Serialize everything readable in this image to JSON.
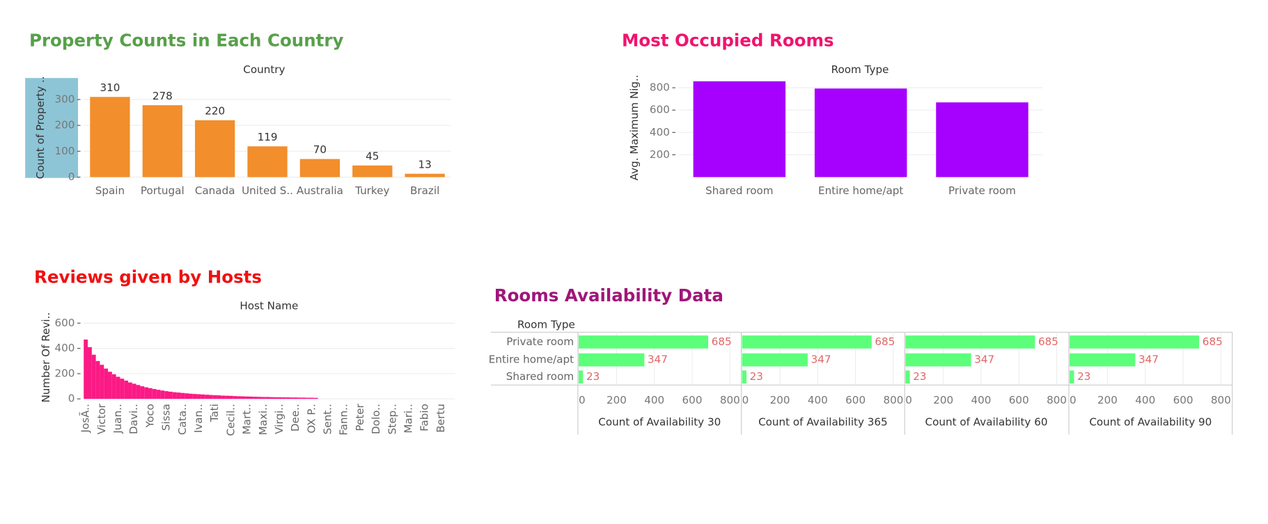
{
  "chart_data": [
    {
      "type": "bar",
      "title": "Property Counts in Each Country",
      "header": "Country",
      "ylabel": "Count of Property ..",
      "categories": [
        "Spain",
        "Portugal",
        "Canada",
        "United S..",
        "Australia",
        "Turkey",
        "Brazil"
      ],
      "values": [
        310,
        278,
        220,
        119,
        70,
        45,
        13
      ],
      "color": "#f28e2b",
      "data_labels": true,
      "ylim": [
        0,
        380
      ],
      "yticks": [
        0,
        100,
        200,
        300
      ],
      "grid": true
    },
    {
      "type": "bar",
      "title": "Most Occupied Rooms",
      "header": "Room Type",
      "ylabel": "Avg. Maximum Nig..",
      "categories": [
        "Shared room",
        "Entire home/apt",
        "Private room"
      ],
      "values": [
        858,
        793,
        669
      ],
      "color": "#a600ff",
      "data_labels": false,
      "ylim": [
        0,
        880
      ],
      "yticks": [
        200,
        400,
        600,
        800
      ],
      "grid": true
    },
    {
      "type": "bar",
      "title": "Reviews given by Hosts",
      "header": "Host Name",
      "ylabel": "Number Of Revi..",
      "categories": [
        "JosÃ..",
        null,
        null,
        null,
        "Victor",
        null,
        null,
        null,
        "Juan..",
        null,
        null,
        null,
        "Davi..",
        null,
        null,
        null,
        "Yoco",
        null,
        null,
        null,
        "Sissa",
        null,
        null,
        null,
        "Cata..",
        null,
        null,
        null,
        "Ivan..",
        null,
        null,
        null,
        "Tati",
        null,
        null,
        null,
        "Cecil..",
        null,
        null,
        null,
        "Mart..",
        null,
        null,
        null,
        "Maxi..",
        null,
        null,
        null,
        "Virgi..",
        null,
        null,
        null,
        "Dee..",
        null,
        null,
        null,
        "OX P..",
        null,
        null,
        null,
        "Sent..",
        null,
        null,
        null,
        "Fann..",
        null,
        null,
        null,
        "Peter",
        null,
        null,
        null,
        "Dolo..",
        null,
        null,
        null,
        "Step..",
        null,
        null,
        null,
        "Mari..",
        null,
        null,
        null,
        "Fabio",
        null,
        null,
        null,
        "Bertu",
        null,
        null,
        null
      ],
      "values": [
        470,
        410,
        350,
        300,
        270,
        240,
        215,
        195,
        175,
        160,
        145,
        130,
        120,
        110,
        100,
        92,
        85,
        78,
        72,
        66,
        61,
        57,
        53,
        50,
        47,
        44,
        41,
        39,
        37,
        35,
        33,
        31,
        29,
        28,
        26,
        25,
        24,
        22,
        21,
        20,
        19,
        18,
        17,
        16,
        15,
        15,
        14,
        13,
        13,
        12,
        12,
        11,
        11,
        10,
        10,
        9,
        9,
        8,
        0,
        0,
        0,
        0,
        0,
        0,
        0,
        0,
        0,
        0,
        0,
        0,
        0,
        0,
        0,
        0,
        0,
        0,
        0,
        0,
        0,
        0,
        0,
        0,
        0,
        0,
        0,
        0,
        0,
        0,
        0,
        0,
        0,
        0
      ],
      "color": "#fb1a85",
      "data_labels": false,
      "ylim": [
        0,
        650
      ],
      "yticks": [
        0,
        200,
        400,
        600
      ],
      "grid": true
    },
    {
      "type": "hbar_panels",
      "title": "Rooms Availability Data",
      "header": "Room Type",
      "categories": [
        "Private room",
        "Entire home/apt",
        "Shared room"
      ],
      "series": [
        {
          "name": "Count of Availability 30",
          "values": [
            685,
            347,
            23
          ]
        },
        {
          "name": "Count of Availability 365",
          "values": [
            685,
            347,
            23
          ]
        },
        {
          "name": "Count of Availability 60",
          "values": [
            685,
            347,
            23
          ]
        },
        {
          "name": "Count of Availability 90",
          "values": [
            685,
            347,
            23
          ]
        }
      ],
      "color": "#5cff7a",
      "label_color": "#e06666",
      "data_labels": true,
      "xlim": [
        0,
        860
      ],
      "xticks": [
        0,
        200,
        400,
        600,
        800
      ],
      "grid": true
    }
  ]
}
